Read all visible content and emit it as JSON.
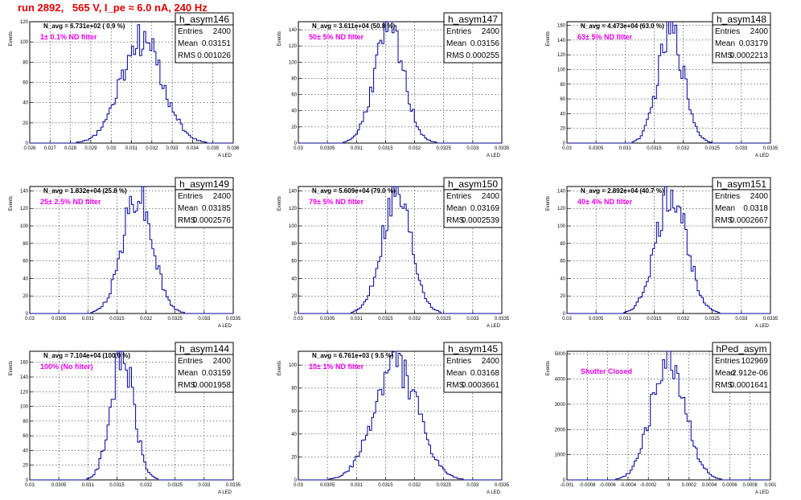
{
  "title": "run 2892,   565 V, I_pe ≈ 6.0 nA, 240 Hz",
  "ylabel": "Events",
  "xlabel": "A LED",
  "chart_data": [
    {
      "type": "histogram",
      "name": "h_asym146",
      "n_avg": "N_avg = 6.731e+02 ( 0.9 %)",
      "filter": "1± 0.1% ND filter",
      "stats": {
        "Entries": "2400",
        "Mean": "0.03151",
        "RMS": "0.001026"
      },
      "xlim": [
        0.026,
        0.036
      ],
      "ylim": [
        0,
        120
      ],
      "xticks": [
        "0.026",
        "0.027",
        "0.028",
        "0.029",
        "0.03",
        "0.031",
        "0.032",
        "0.033",
        "0.034",
        "0.035",
        "0.036"
      ],
      "yticks": [
        "0",
        "20",
        "40",
        "60",
        "80",
        "100",
        "120"
      ],
      "mean": 0.03151,
      "rms": 0.001026,
      "peak": 101,
      "bins": 100,
      "seed": 146
    },
    {
      "type": "histogram",
      "name": "h_asym147",
      "n_avg": "N_avg = 3.611e+04 (50.8 %)",
      "filter": "50± 5% ND filter",
      "stats": {
        "Entries": "2400",
        "Mean": "0.03156",
        "RMS": "0.000255"
      },
      "xlim": [
        0.03,
        0.0335
      ],
      "ylim": [
        0,
        150
      ],
      "xticks": [
        "0.03",
        "0.0305",
        "0.031",
        "0.0315",
        "0.032",
        "0.0325",
        "0.033",
        "0.0335"
      ],
      "yticks": [
        "0",
        "20",
        "40",
        "60",
        "80",
        "100",
        "120",
        "140"
      ],
      "mean": 0.03156,
      "rms": 0.000255,
      "peak": 139,
      "bins": 100,
      "seed": 147
    },
    {
      "type": "histogram",
      "name": "h_asym148",
      "n_avg": "N_avg = 4.473e+04 (63.0 %)",
      "filter": "63± 5% ND filter",
      "stats": {
        "Entries": "2400",
        "Mean": "0.03179",
        "RMS": "0.0002213"
      },
      "xlim": [
        0.03,
        0.0335
      ],
      "ylim": [
        0,
        165
      ],
      "xticks": [
        "0.03",
        "0.0305",
        "0.031",
        "0.0315",
        "0.032",
        "0.0325",
        "0.033",
        "0.0335"
      ],
      "yticks": [
        "0",
        "20",
        "40",
        "60",
        "80",
        "100",
        "120",
        "140",
        "160"
      ],
      "mean": 0.03179,
      "rms": 0.0002213,
      "peak": 152,
      "bins": 100,
      "seed": 148
    },
    {
      "type": "histogram",
      "name": "h_asym149",
      "n_avg": "N_avg = 1.832e+04 (25.8 %)",
      "filter": "25± 2.5% ND filter",
      "stats": {
        "Entries": "2400",
        "Mean": "0.03185",
        "RMS": "0.0002576"
      },
      "xlim": [
        0.03,
        0.0335
      ],
      "ylim": [
        0,
        145
      ],
      "xticks": [
        "0.03",
        "0.0305",
        "0.031",
        "0.0315",
        "0.032",
        "0.0325",
        "0.033",
        "0.0335"
      ],
      "yticks": [
        "0",
        "20",
        "40",
        "60",
        "80",
        "100",
        "120",
        "140"
      ],
      "mean": 0.03185,
      "rms": 0.0002576,
      "peak": 138,
      "bins": 100,
      "seed": 149
    },
    {
      "type": "histogram",
      "name": "h_asym150",
      "n_avg": "N_avg = 5.609e+04 (79.0 %)",
      "filter": "79± 5% ND filter",
      "stats": {
        "Entries": "2400",
        "Mean": "0.03169",
        "RMS": "0.0002539"
      },
      "xlim": [
        0.03,
        0.0335
      ],
      "ylim": [
        0,
        145
      ],
      "xticks": [
        "0.03",
        "0.0305",
        "0.031",
        "0.0315",
        "0.032",
        "0.0325",
        "0.033",
        "0.0335"
      ],
      "yticks": [
        "0",
        "20",
        "40",
        "60",
        "80",
        "100",
        "120",
        "140"
      ],
      "mean": 0.03169,
      "rms": 0.0002539,
      "peak": 140,
      "bins": 100,
      "seed": 150
    },
    {
      "type": "histogram",
      "name": "h_asym151",
      "n_avg": "N_avg = 2.892e+04 (40.7 %)",
      "filter": "40± 4% ND filter",
      "stats": {
        "Entries": "2400",
        "Mean": "0.0318",
        "RMS": "0.0002667"
      },
      "xlim": [
        0.03,
        0.0335
      ],
      "ylim": [
        0,
        145
      ],
      "xticks": [
        "0.03",
        "0.0305",
        "0.031",
        "0.0315",
        "0.032",
        "0.0325",
        "0.033",
        "0.0335"
      ],
      "yticks": [
        "0",
        "20",
        "40",
        "60",
        "80",
        "100",
        "120",
        "140"
      ],
      "mean": 0.0318,
      "rms": 0.0002667,
      "peak": 135,
      "bins": 100,
      "seed": 151
    },
    {
      "type": "histogram",
      "name": "h_asym144",
      "n_avg": "N_avg = 7.104e+04 (100.0 %)",
      "filter": "100% (No filter)",
      "stats": {
        "Entries": "2400",
        "Mean": "0.03159",
        "RMS": "0.0001958"
      },
      "xlim": [
        0.03,
        0.0335
      ],
      "ylim": [
        0,
        175
      ],
      "xticks": [
        "0.03",
        "0.0305",
        "0.031",
        "0.0315",
        "0.032",
        "0.0325",
        "0.033",
        "0.0335"
      ],
      "yticks": [
        "0",
        "20",
        "40",
        "60",
        "80",
        "100",
        "120",
        "140",
        "160"
      ],
      "mean": 0.03159,
      "rms": 0.0001958,
      "peak": 170,
      "bins": 100,
      "seed": 144
    },
    {
      "type": "histogram",
      "name": "h_asym145",
      "n_avg": "N_avg = 6.761e+03 ( 9.5 %)",
      "filter": "10± 1% ND filter",
      "stats": {
        "Entries": "2400",
        "Mean": "0.03168",
        "RMS": "0.0003661"
      },
      "xlim": [
        0.03,
        0.0335
      ],
      "ylim": [
        0,
        112
      ],
      "xticks": [
        "0.03",
        "0.0305",
        "0.031",
        "0.0315",
        "0.032",
        "0.0325",
        "0.033",
        "0.0335"
      ],
      "yticks": [
        "0",
        "20",
        "40",
        "60",
        "80",
        "100"
      ],
      "mean": 0.03168,
      "rms": 0.0003661,
      "peak": 103,
      "bins": 100,
      "seed": 145
    },
    {
      "type": "histogram",
      "name": "hPed_asym",
      "n_avg": "",
      "filter": "Shutter Closed",
      "stats": {
        "Entries": "102969",
        "Mean": "-2.912e-06",
        "RMS": "0.0001641"
      },
      "xlim": [
        -0.001,
        0.001
      ],
      "ylim": [
        0,
        5100
      ],
      "xticks": [
        "-0.001",
        "-0.0008",
        "-0.0006",
        "-0.0004",
        "-0.0002",
        "0",
        "0.0002",
        "0.0004",
        "0.0006",
        "0.0008",
        "0.001"
      ],
      "yticks": [
        "0",
        "1000",
        "2000",
        "3000",
        "4000",
        "5000"
      ],
      "mean": -2.912e-06,
      "rms": 0.0001641,
      "peak": 4900,
      "bins": 100,
      "seed": 999
    }
  ]
}
